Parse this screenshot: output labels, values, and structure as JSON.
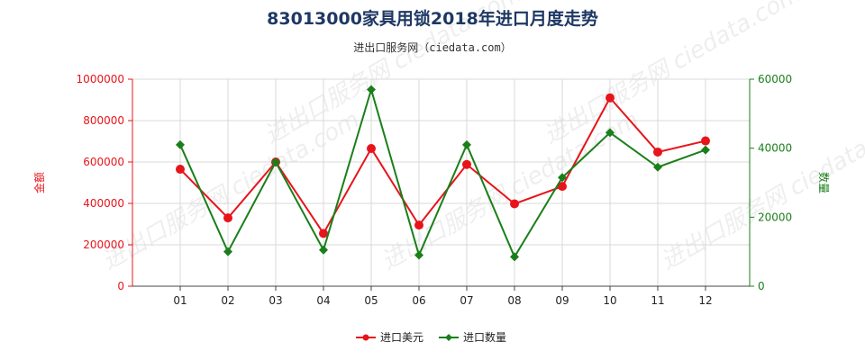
{
  "title": "83013000家具用锁2018年进口月度走势",
  "subtitle": "进出口服务网（ciedata.com）",
  "watermark": "进出口服务网 ciedata.com",
  "colors": {
    "amount": "#e8141b",
    "quantity": "#1a7f1a",
    "axis": "#444444",
    "grid": "#d9d9d9"
  },
  "chart_data": {
    "type": "line",
    "categories": [
      "01",
      "02",
      "03",
      "04",
      "05",
      "06",
      "07",
      "08",
      "09",
      "10",
      "11",
      "12"
    ],
    "y_left": {
      "label": "金额",
      "range": [
        0,
        1000000
      ],
      "ticks": [
        "0",
        "200000",
        "400000",
        "600000",
        "800000",
        "1000000"
      ]
    },
    "y_right": {
      "label": "数量",
      "range": [
        0,
        60000
      ],
      "ticks": [
        "0",
        "20000",
        "40000",
        "60000"
      ]
    },
    "series": [
      {
        "name": "进口美元",
        "axis": "left",
        "marker": "circle",
        "values": [
          565000,
          330000,
          600000,
          255000,
          665000,
          295000,
          588000,
          398000,
          482000,
          910000,
          648000,
          702000
        ]
      },
      {
        "name": "进口数量",
        "axis": "right",
        "marker": "diamond",
        "values": [
          41000,
          10000,
          36000,
          10500,
          57000,
          9000,
          41000,
          8500,
          31500,
          44500,
          34500,
          39500
        ]
      }
    ],
    "grid": true,
    "legend_position": "bottom-center"
  }
}
